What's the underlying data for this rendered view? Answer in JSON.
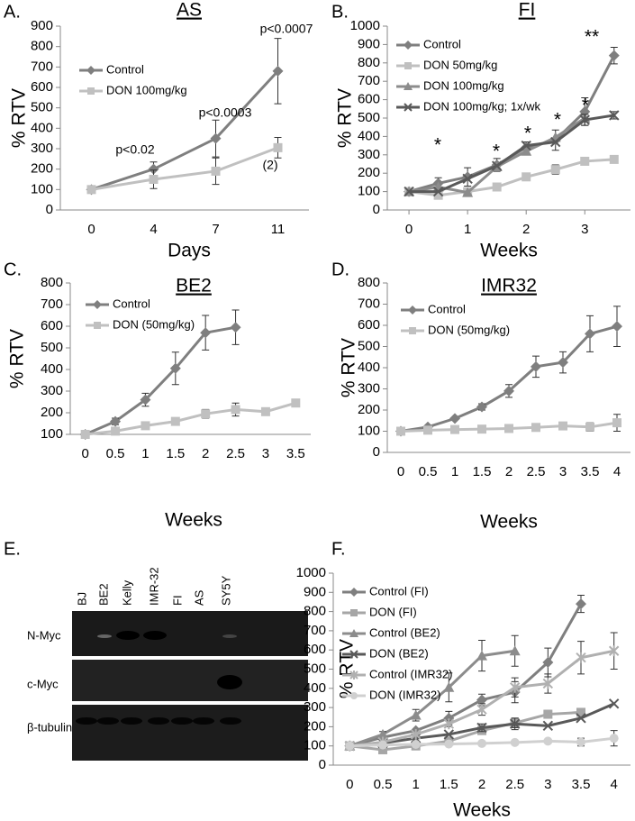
{
  "chart_data": [
    {
      "type": "line",
      "letter": "A.",
      "title": "AS",
      "xlabel": "Days",
      "ylabel": "% RTV",
      "categories": [
        "0",
        "4",
        "7",
        "11"
      ],
      "ylim": [
        0,
        900
      ],
      "yticks": [
        0,
        100,
        200,
        300,
        400,
        500,
        600,
        700,
        800,
        900
      ],
      "legend": "upper left",
      "series": [
        {
          "name": "Control",
          "color": "#7f7f7f",
          "marker": "diamond",
          "values": [
            100,
            200,
            350,
            680
          ],
          "errors": [
            null,
            35,
            90,
            160
          ]
        },
        {
          "name": "DON 100mg/kg",
          "color": "#c0c0c0",
          "marker": "square",
          "values": [
            100,
            150,
            190,
            305
          ],
          "errors": [
            null,
            45,
            65,
            50
          ]
        }
      ],
      "annotations": [
        "p<0.02",
        "p<0.0003",
        "p<0.0007",
        "(2)"
      ]
    },
    {
      "type": "line",
      "letter": "B.",
      "title": "FI",
      "xlabel": "Weeks",
      "ylabel": "% RTV",
      "x": [
        0,
        0.5,
        1,
        1.5,
        2,
        2.5,
        3,
        3.5
      ],
      "xlim": [
        -0.37,
        3.78
      ],
      "xticks": [
        0,
        1,
        2,
        3
      ],
      "ylim": [
        0,
        1000
      ],
      "yticks": [
        0,
        100,
        200,
        300,
        400,
        500,
        600,
        700,
        800,
        900,
        1000
      ],
      "legend": "upper left",
      "series": [
        {
          "name": "Control",
          "color": "#7f7f7f",
          "marker": "diamond",
          "values": [
            100,
            145,
            180,
            245,
            340,
            380,
            535,
            840
          ],
          "errors": [
            null,
            30,
            50,
            35,
            30,
            55,
            75,
            45
          ]
        },
        {
          "name": "DON 50mg/kg",
          "color": "#c0c0c0",
          "marker": "square",
          "values": [
            100,
            80,
            100,
            125,
            180,
            220,
            265,
            275
          ],
          "errors": [
            null,
            15,
            20,
            15,
            20,
            25,
            20,
            15
          ]
        },
        {
          "name": "DON 100mg/kg",
          "color": "#8c8c8c",
          "marker": "triangle",
          "values": [
            100,
            125,
            95,
            235,
            320,
            395,
            500,
            null
          ],
          "errors": [
            null,
            null,
            null,
            null,
            null,
            null,
            null,
            null
          ]
        },
        {
          "name": "DON 100mg/kg; 1x/wk",
          "color": "#595959",
          "marker": "x",
          "values": [
            100,
            100,
            170,
            240,
            350,
            370,
            490,
            515
          ],
          "errors": [
            null,
            null,
            null,
            null,
            null,
            null,
            30,
            20
          ]
        }
      ],
      "annotations": [
        "*",
        "*",
        "*",
        "*",
        "*",
        "**"
      ]
    },
    {
      "type": "line",
      "letter": "C.",
      "title": "BE2",
      "xlabel": "Weeks",
      "ylabel": "% RTV",
      "categories": [
        "0",
        "0.5",
        "1",
        "1.5",
        "2",
        "2.5",
        "3",
        "3.5"
      ],
      "ylim": [
        100,
        800
      ],
      "yticks": [
        100,
        200,
        300,
        400,
        500,
        600,
        700,
        800
      ],
      "legend": "upper left",
      "series": [
        {
          "name": "Control",
          "color": "#7f7f7f",
          "marker": "diamond",
          "values": [
            100,
            160,
            260,
            405,
            570,
            595,
            null,
            null
          ],
          "errors": [
            null,
            15,
            30,
            75,
            80,
            80,
            null,
            null
          ]
        },
        {
          "name": "DON (50mg/kg)",
          "color": "#c0c0c0",
          "marker": "square",
          "values": [
            100,
            115,
            140,
            160,
            195,
            215,
            205,
            245
          ],
          "errors": [
            null,
            null,
            null,
            null,
            20,
            30,
            null,
            null
          ]
        }
      ]
    },
    {
      "type": "line",
      "letter": "D.",
      "title": "IMR32",
      "xlabel": "Weeks",
      "ylabel": "% RTV",
      "categories": [
        "0",
        "0.5",
        "1",
        "1.5",
        "2",
        "2.5",
        "3",
        "3.5",
        "4"
      ],
      "ylim": [
        0,
        800
      ],
      "yticks": [
        0,
        100,
        200,
        300,
        400,
        500,
        600,
        700,
        800
      ],
      "legend": "upper left",
      "series": [
        {
          "name": "Control",
          "color": "#7f7f7f",
          "marker": "diamond",
          "values": [
            100,
            120,
            160,
            215,
            290,
            405,
            425,
            560,
            595
          ],
          "errors": [
            null,
            null,
            null,
            15,
            30,
            50,
            50,
            85,
            95
          ]
        },
        {
          "name": "DON (50mg/kg)",
          "color": "#c0c0c0",
          "marker": "square",
          "values": [
            100,
            105,
            108,
            110,
            113,
            118,
            125,
            120,
            140
          ],
          "errors": [
            null,
            null,
            null,
            null,
            null,
            null,
            null,
            20,
            40
          ]
        }
      ]
    },
    {
      "type": "line",
      "letter": "F.",
      "xlabel": "Weeks",
      "ylabel": "% RTV",
      "categories": [
        "0",
        "0.5",
        "1",
        "1.5",
        "2",
        "2.5",
        "3",
        "3.5",
        "4"
      ],
      "ylim": [
        0,
        1000
      ],
      "yticks": [
        0,
        100,
        200,
        300,
        400,
        500,
        600,
        700,
        800,
        900,
        1000
      ],
      "legend": "upper left",
      "series": [
        {
          "name": "Control (FI)",
          "color": "#7f7f7f",
          "marker": "diamond",
          "values": [
            100,
            145,
            180,
            245,
            340,
            380,
            535,
            840,
            null
          ],
          "errors": [
            null,
            null,
            null,
            35,
            30,
            55,
            75,
            45,
            null
          ]
        },
        {
          "name": "DON (FI)",
          "color": "#a6a6a6",
          "marker": "square",
          "values": [
            100,
            80,
            100,
            125,
            180,
            220,
            265,
            275,
            null
          ],
          "errors": [
            null,
            null,
            null,
            null,
            20,
            25,
            20,
            15,
            null
          ]
        },
        {
          "name": "Control (BE2)",
          "color": "#8c8c8c",
          "marker": "triangle",
          "values": [
            100,
            160,
            260,
            405,
            570,
            595,
            null,
            null,
            null
          ],
          "errors": [
            null,
            15,
            30,
            75,
            80,
            80,
            null,
            null,
            null
          ]
        },
        {
          "name": "DON (BE2)",
          "color": "#595959",
          "marker": "x",
          "values": [
            100,
            115,
            140,
            160,
            195,
            215,
            205,
            245,
            320
          ],
          "errors": [
            null,
            null,
            null,
            null,
            20,
            30,
            null,
            null,
            null
          ]
        },
        {
          "name": "Control (IMR32)",
          "color": "#b0b0b0",
          "marker": "star",
          "values": [
            100,
            120,
            160,
            215,
            290,
            405,
            425,
            560,
            595
          ],
          "errors": [
            null,
            null,
            null,
            15,
            30,
            50,
            50,
            85,
            95
          ]
        },
        {
          "name": "DON (IMR32)",
          "color": "#d0d0d0",
          "marker": "circle",
          "values": [
            100,
            105,
            108,
            110,
            113,
            118,
            125,
            120,
            140
          ],
          "errors": [
            null,
            null,
            null,
            null,
            null,
            null,
            null,
            20,
            40
          ]
        }
      ]
    }
  ],
  "blot": {
    "letter": "E.",
    "lanes": [
      "BJ",
      "BE2",
      "Kelly",
      "IMR-32",
      "FI",
      "AS",
      "SY5Y"
    ],
    "rows": [
      "N-Myc",
      "c-Myc",
      "β-tubulin"
    ]
  }
}
